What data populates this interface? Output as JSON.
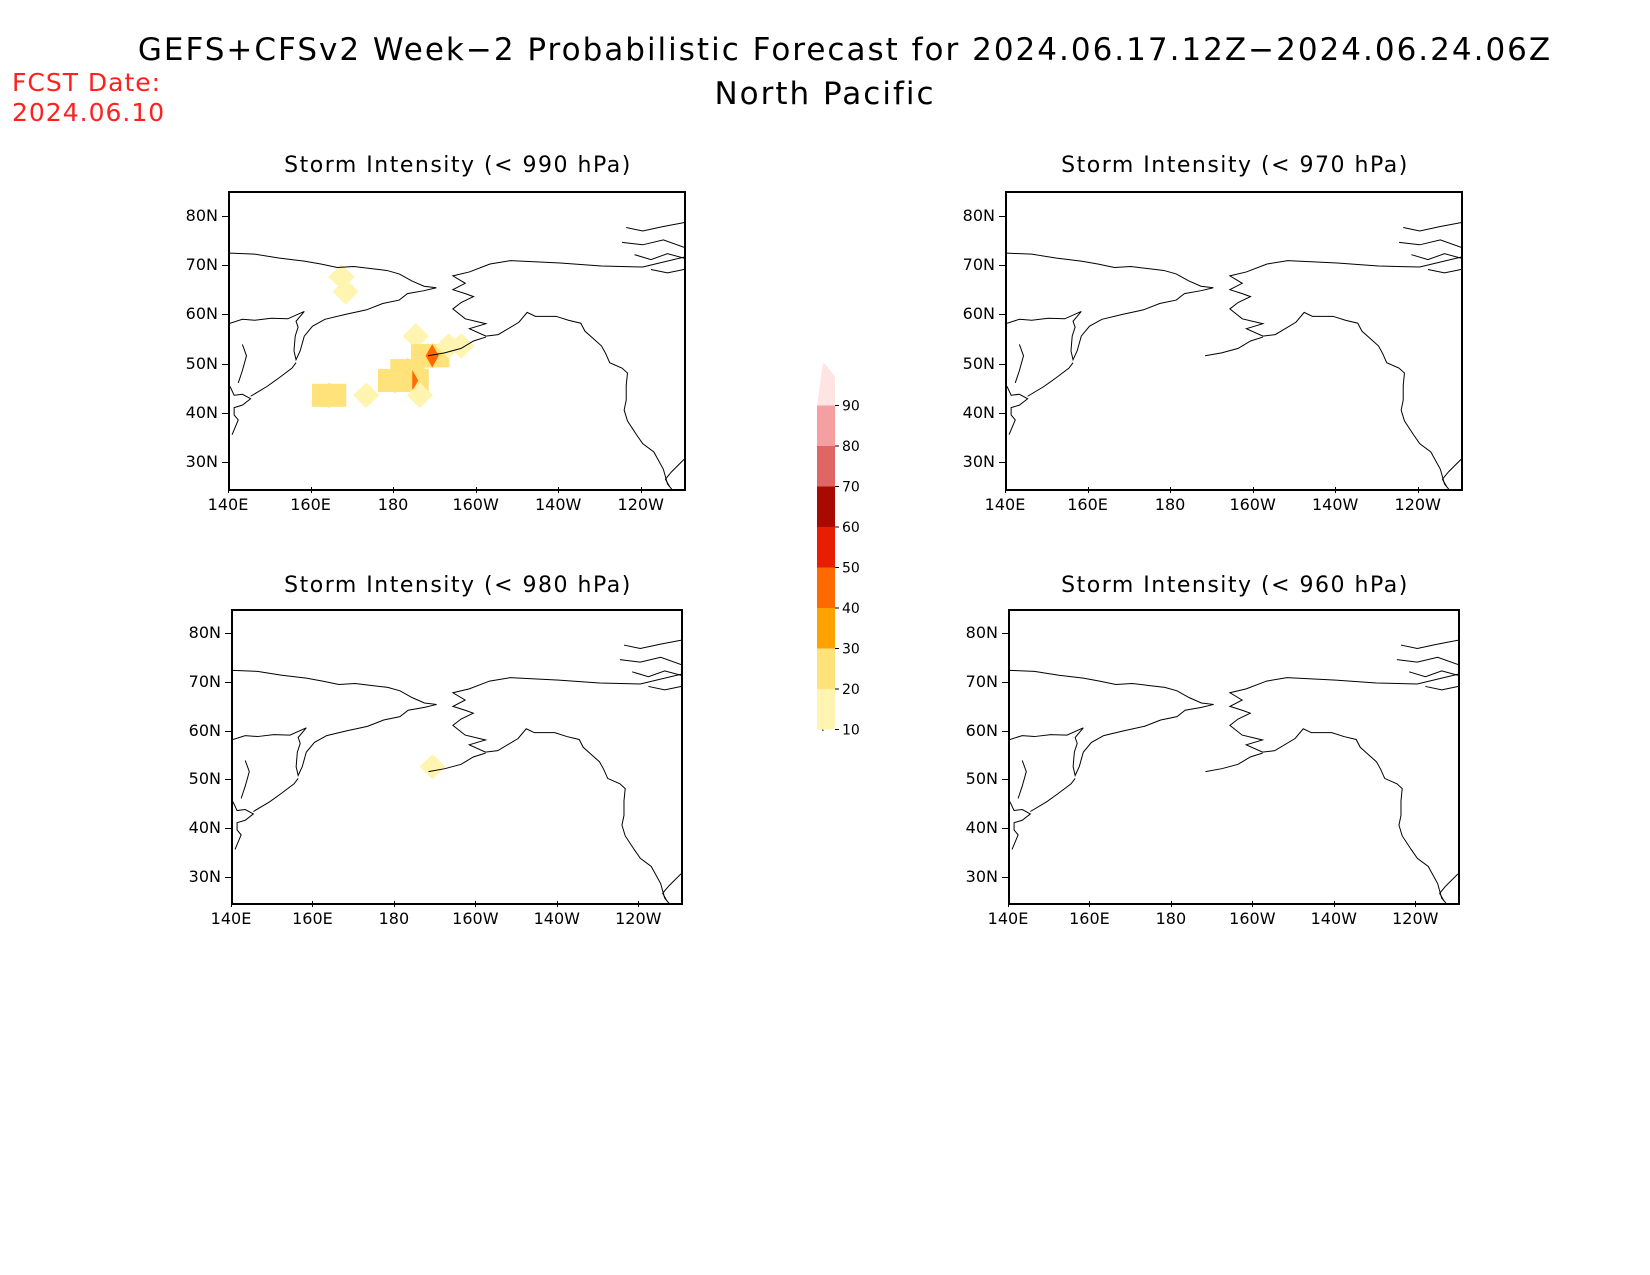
{
  "header": {
    "title": "GEFS+CFSv2 Week−2 Probabilistic Forecast for 2024.06.17.12Z−2024.06.24.06Z",
    "subtitle": "North Pacific",
    "fcst_label": "FCST Date:",
    "fcst_date": "2024.06.10"
  },
  "axes": {
    "lat_labels": [
      "80N",
      "70N",
      "60N",
      "50N",
      "40N",
      "30N"
    ],
    "lat_values": [
      80,
      70,
      60,
      50,
      40,
      30
    ],
    "lon_labels": [
      "140E",
      "160E",
      "180",
      "160W",
      "140W",
      "120W"
    ],
    "lon_values": [
      140,
      160,
      180,
      200,
      220,
      240
    ],
    "lon_range": [
      140,
      250
    ],
    "lat_range": [
      25,
      85
    ]
  },
  "panels": [
    {
      "id": "p990",
      "title": "Storm Intensity (< 990 hPa)",
      "threshold_hpa": 990
    },
    {
      "id": "p970",
      "title": "Storm Intensity (< 970 hPa)",
      "threshold_hpa": 970
    },
    {
      "id": "p980",
      "title": "Storm Intensity (< 980 hPa)",
      "threshold_hpa": 980
    },
    {
      "id": "p960",
      "title": "Storm Intensity (< 960 hPa)",
      "threshold_hpa": 960
    }
  ],
  "colorbar": {
    "levels": [
      "10",
      "20",
      "30",
      "40",
      "50",
      "60",
      "70",
      "80",
      "90"
    ],
    "colors": [
      "#fff5b0",
      "#ffe27a",
      "#ffa200",
      "#ff6a00",
      "#e81e00",
      "#a80a00",
      "#e06666",
      "#f4a0a0",
      "#ffe4e4"
    ]
  },
  "probability_fields": {
    "p990": [
      {
        "lon": 167,
        "lat": 68,
        "prob": 15
      },
      {
        "lon": 168,
        "lat": 65,
        "prob": 15
      },
      {
        "lon": 185,
        "lat": 56,
        "prob": 15
      },
      {
        "lon": 188,
        "lat": 52,
        "prob": 25
      },
      {
        "lon": 189,
        "lat": 52,
        "prob": 45
      },
      {
        "lon": 183,
        "lat": 49,
        "prob": 25
      },
      {
        "lon": 184,
        "lat": 47,
        "prob": 45
      },
      {
        "lon": 180,
        "lat": 47,
        "prob": 20
      },
      {
        "lon": 186,
        "lat": 44,
        "prob": 15
      },
      {
        "lon": 193,
        "lat": 54,
        "prob": 15
      },
      {
        "lon": 196,
        "lat": 54,
        "prob": 15
      },
      {
        "lon": 164,
        "lat": 44,
        "prob": 20
      },
      {
        "lon": 173,
        "lat": 44,
        "prob": 15
      }
    ],
    "p970": [],
    "p980": [
      {
        "lon": 189,
        "lat": 53,
        "prob": 15
      }
    ],
    "p960": []
  }
}
